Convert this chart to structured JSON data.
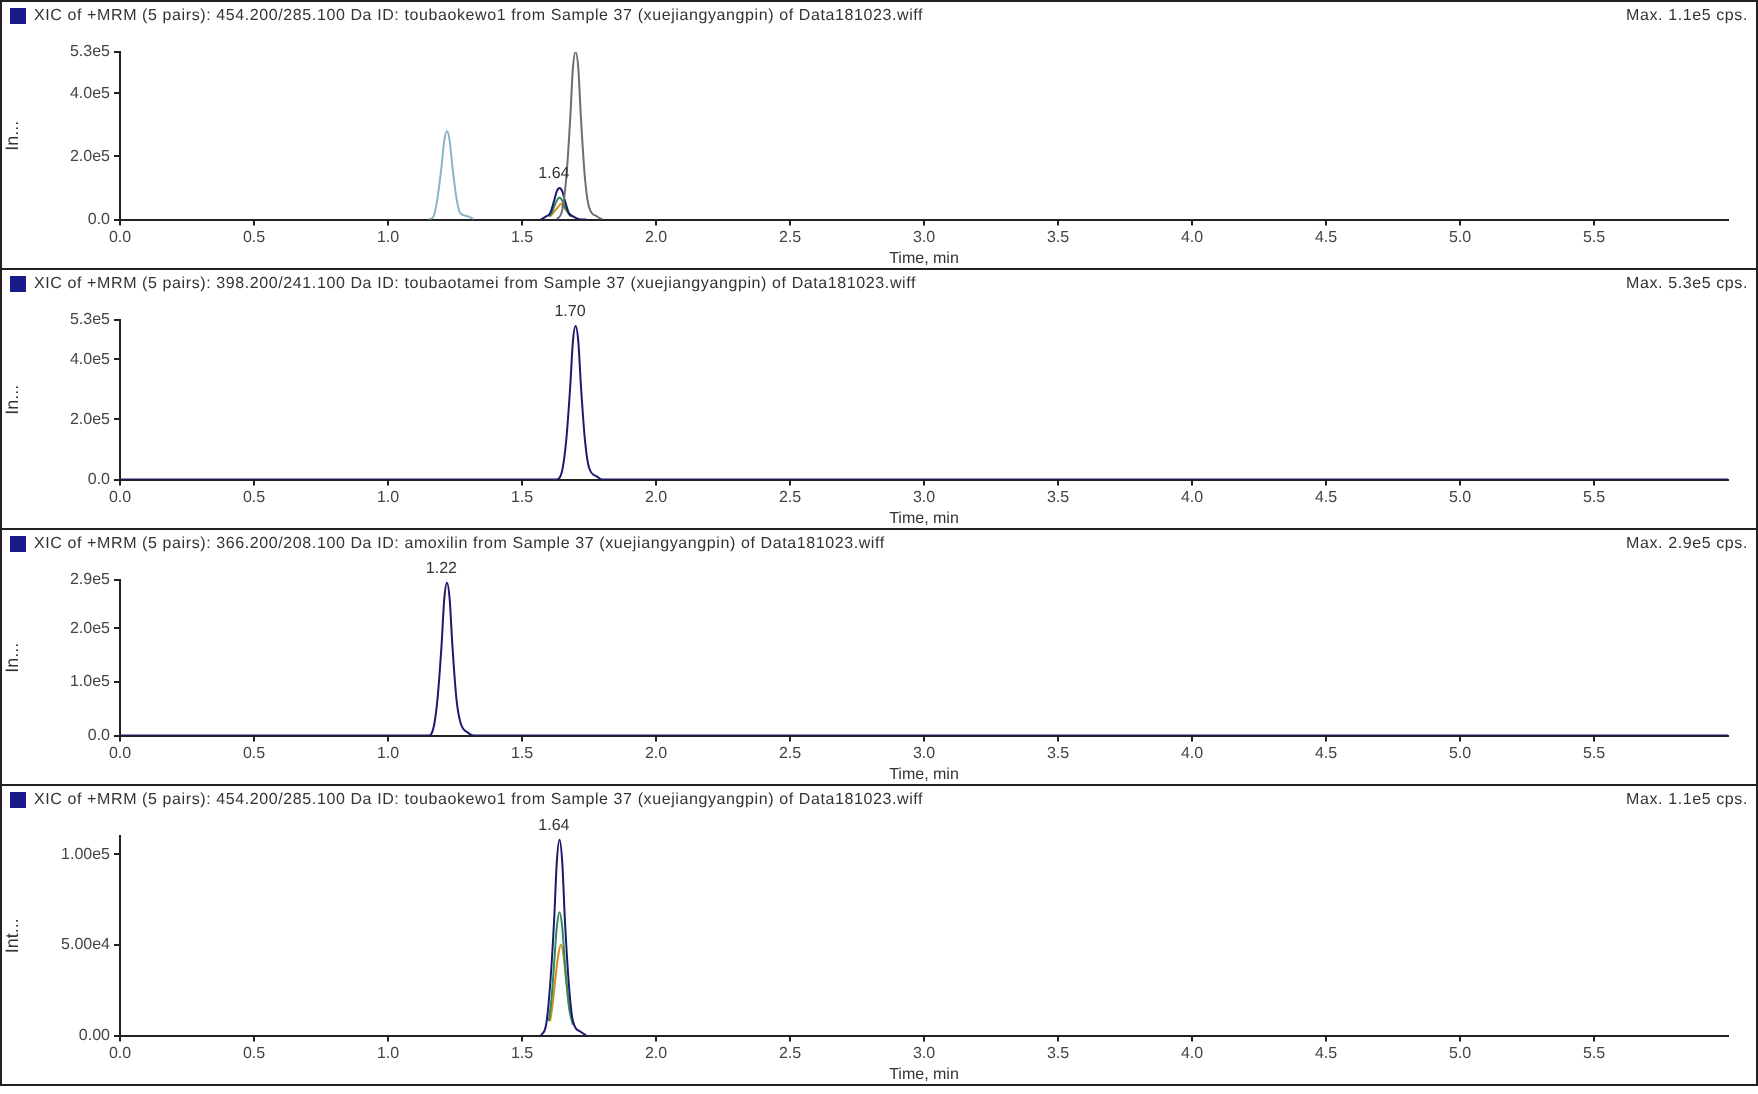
{
  "chart_data": [
    {
      "type": "line",
      "title": "XIC of +MRM (5 pairs): 454.200/285.100 Da ID: toubaokewo1 from Sample 37 (xuejiangyangpin) of Data181023.wiff",
      "subtitle": "Max. 1.1e5 cps.",
      "xlabel": "Time, min",
      "ylabel": "In...",
      "xlim": [
        0,
        6.0
      ],
      "xticks": [
        {
          "value": 0,
          "label": "0.0"
        },
        {
          "value": 0.5,
          "label": "0.5"
        },
        {
          "value": 1,
          "label": "1.0"
        },
        {
          "value": 1.5,
          "label": "1.5"
        },
        {
          "value": 2,
          "label": "2.0"
        },
        {
          "value": 2.5,
          "label": "2.5"
        },
        {
          "value": 3,
          "label": "3.0"
        },
        {
          "value": 3.5,
          "label": "3.5"
        },
        {
          "value": 4,
          "label": "4.0"
        },
        {
          "value": 4.5,
          "label": "4.5"
        },
        {
          "value": 5,
          "label": "5.0"
        },
        {
          "value": 5.5,
          "label": "5.5"
        }
      ],
      "ylim": [
        0,
        530000
      ],
      "yticks": [
        {
          "value": 0,
          "label": "0.0"
        },
        {
          "value": 200000,
          "label": "2.0e5"
        },
        {
          "value": 400000,
          "label": "4.0e5"
        },
        {
          "value": 530000,
          "label": "5.3e5"
        }
      ],
      "marker": "none",
      "annotations": [
        {
          "text": "1.64",
          "x": 1.64,
          "y": 100000
        }
      ],
      "series": [
        {
          "color": "#8ab4cc",
          "x": [
            1.15,
            1.17,
            1.185,
            1.2,
            1.21,
            1.22,
            1.23,
            1.24,
            1.255,
            1.27,
            1.3,
            1.32
          ],
          "values": [
            0,
            10000,
            70000,
            170000,
            250000,
            280000,
            250000,
            170000,
            70000,
            20000,
            10000,
            0
          ]
        },
        {
          "color": "#6e6e6e",
          "x": [
            1.63,
            1.65,
            1.665,
            1.68,
            1.69,
            1.7,
            1.71,
            1.72,
            1.735,
            1.75,
            1.78,
            1.8
          ],
          "values": [
            0,
            30000,
            130000,
            320000,
            480000,
            530000,
            480000,
            320000,
            130000,
            40000,
            10000,
            0
          ]
        },
        {
          "color": "#1a1a6e",
          "x": [
            1.57,
            1.59,
            1.605,
            1.62,
            1.63,
            1.64,
            1.65,
            1.66,
            1.675,
            1.69,
            1.72,
            1.74
          ],
          "values": [
            0,
            10000,
            20000,
            60000,
            90000,
            100000,
            90000,
            60000,
            20000,
            10000,
            0,
            0
          ]
        },
        {
          "color": "#2e8b57",
          "x": [
            1.6,
            1.61,
            1.62,
            1.63,
            1.64,
            1.65,
            1.66,
            1.675,
            1.69
          ],
          "values": [
            10000,
            20000,
            40000,
            60000,
            70000,
            60000,
            40000,
            20000,
            10000
          ]
        },
        {
          "color": "#d2901e",
          "x": [
            1.605,
            1.615,
            1.625,
            1.635,
            1.645,
            1.655,
            1.665,
            1.68
          ],
          "values": [
            10000,
            20000,
            30000,
            40000,
            50000,
            40000,
            30000,
            10000
          ]
        }
      ]
    },
    {
      "type": "line",
      "title": "XIC of +MRM (5 pairs): 398.200/241.100 Da ID: toubaotamei from Sample 37 (xuejiangyangpin) of Data181023.wiff",
      "subtitle": "Max. 5.3e5 cps.",
      "xlabel": "Time, min",
      "ylabel": "In...",
      "xlim": [
        0,
        6.0
      ],
      "xticks": [
        {
          "value": 0,
          "label": "0.0"
        },
        {
          "value": 0.5,
          "label": "0.5"
        },
        {
          "value": 1,
          "label": "1.0"
        },
        {
          "value": 1.5,
          "label": "1.5"
        },
        {
          "value": 2,
          "label": "2.0"
        },
        {
          "value": 2.5,
          "label": "2.5"
        },
        {
          "value": 3,
          "label": "3.0"
        },
        {
          "value": 3.5,
          "label": "3.5"
        },
        {
          "value": 4,
          "label": "4.0"
        },
        {
          "value": 4.5,
          "label": "4.5"
        },
        {
          "value": 5,
          "label": "5.0"
        },
        {
          "value": 5.5,
          "label": "5.5"
        }
      ],
      "ylim": [
        0,
        530000
      ],
      "yticks": [
        {
          "value": 0,
          "label": "0.0"
        },
        {
          "value": 200000,
          "label": "2.0e5"
        },
        {
          "value": 400000,
          "label": "4.0e5"
        },
        {
          "value": 530000,
          "label": "5.3e5"
        }
      ],
      "marker": "none",
      "annotations": [
        {
          "text": "1.70",
          "x": 1.7,
          "y": 510000
        }
      ],
      "series": [
        {
          "color": "#1a1a6e",
          "x": [
            0,
            1.63,
            1.65,
            1.665,
            1.68,
            1.69,
            1.7,
            1.71,
            1.72,
            1.735,
            1.75,
            1.78,
            1.8,
            6.0
          ],
          "values": [
            0,
            0,
            30000,
            130000,
            310000,
            460000,
            510000,
            460000,
            310000,
            130000,
            40000,
            10000,
            0,
            0
          ]
        }
      ]
    },
    {
      "type": "line",
      "title": "XIC of +MRM (5 pairs): 366.200/208.100 Da ID: amoxilin from Sample 37 (xuejiangyangpin) of Data181023.wiff",
      "subtitle": "Max. 2.9e5 cps.",
      "xlabel": "Time, min",
      "ylabel": "In...",
      "xlim": [
        0,
        6.0
      ],
      "xticks": [
        {
          "value": 0,
          "label": "0.0"
        },
        {
          "value": 0.5,
          "label": "0.5"
        },
        {
          "value": 1,
          "label": "1.0"
        },
        {
          "value": 1.5,
          "label": "1.5"
        },
        {
          "value": 2,
          "label": "2.0"
        },
        {
          "value": 2.5,
          "label": "2.5"
        },
        {
          "value": 3,
          "label": "3.0"
        },
        {
          "value": 3.5,
          "label": "3.5"
        },
        {
          "value": 4,
          "label": "4.0"
        },
        {
          "value": 4.5,
          "label": "4.5"
        },
        {
          "value": 5,
          "label": "5.0"
        },
        {
          "value": 5.5,
          "label": "5.5"
        }
      ],
      "ylim": [
        0,
        290000
      ],
      "yticks": [
        {
          "value": 0,
          "label": "0.0"
        },
        {
          "value": 100000,
          "label": "1.0e5"
        },
        {
          "value": 200000,
          "label": "2.0e5"
        },
        {
          "value": 290000,
          "label": "2.9e5"
        }
      ],
      "marker": "none",
      "annotations": [
        {
          "text": "1.22",
          "x": 1.22,
          "y": 285000
        }
      ],
      "series": [
        {
          "color": "#1a1a6e",
          "x": [
            0,
            1.15,
            1.17,
            1.185,
            1.2,
            1.21,
            1.22,
            1.23,
            1.24,
            1.255,
            1.27,
            1.3,
            1.32,
            6.0
          ],
          "values": [
            0,
            0,
            15000,
            70000,
            170000,
            255000,
            285000,
            255000,
            170000,
            70000,
            25000,
            5000,
            0,
            0
          ]
        }
      ]
    },
    {
      "type": "line",
      "title": "XIC of +MRM (5 pairs): 454.200/285.100 Da ID: toubaokewo1 from Sample 37 (xuejiangyangpin) of Data181023.wiff",
      "subtitle": "Max. 1.1e5 cps.",
      "xlabel": "Time, min",
      "ylabel": "Int...",
      "xlim": [
        0,
        6.0
      ],
      "xticks": [
        {
          "value": 0,
          "label": "0.0"
        },
        {
          "value": 0.5,
          "label": "0.5"
        },
        {
          "value": 1,
          "label": "1.0"
        },
        {
          "value": 1.5,
          "label": "1.5"
        },
        {
          "value": 2,
          "label": "2.0"
        },
        {
          "value": 2.5,
          "label": "2.5"
        },
        {
          "value": 3,
          "label": "3.0"
        },
        {
          "value": 3.5,
          "label": "3.5"
        },
        {
          "value": 4,
          "label": "4.0"
        },
        {
          "value": 4.5,
          "label": "4.5"
        },
        {
          "value": 5,
          "label": "5.0"
        },
        {
          "value": 5.5,
          "label": "5.5"
        }
      ],
      "ylim": [
        0,
        110000
      ],
      "yticks": [
        {
          "value": 0,
          "label": "0.00"
        },
        {
          "value": 50000,
          "label": "5.00e4"
        },
        {
          "value": 100000,
          "label": "1.00e5"
        }
      ],
      "marker": "none",
      "annotations": [
        {
          "text": "1.64",
          "x": 1.64,
          "y": 108000
        }
      ],
      "series": [
        {
          "color": "#1a1a6e",
          "x": [
            1.57,
            1.59,
            1.605,
            1.62,
            1.63,
            1.64,
            1.65,
            1.66,
            1.675,
            1.69,
            1.72,
            1.74
          ],
          "values": [
            0,
            6000,
            28000,
            64000,
            96000,
            108000,
            96000,
            64000,
            28000,
            8000,
            2000,
            0
          ]
        },
        {
          "color": "#2e8b57",
          "x": [
            1.6,
            1.61,
            1.62,
            1.63,
            1.64,
            1.65,
            1.66,
            1.675,
            1.69
          ],
          "values": [
            8000,
            20000,
            40000,
            60000,
            68000,
            60000,
            40000,
            16000,
            6000
          ]
        },
        {
          "color": "#d2901e",
          "x": [
            1.605,
            1.615,
            1.625,
            1.635,
            1.645,
            1.655,
            1.665,
            1.68
          ],
          "values": [
            8000,
            18000,
            32000,
            44000,
            50000,
            44000,
            30000,
            12000
          ]
        }
      ]
    }
  ]
}
